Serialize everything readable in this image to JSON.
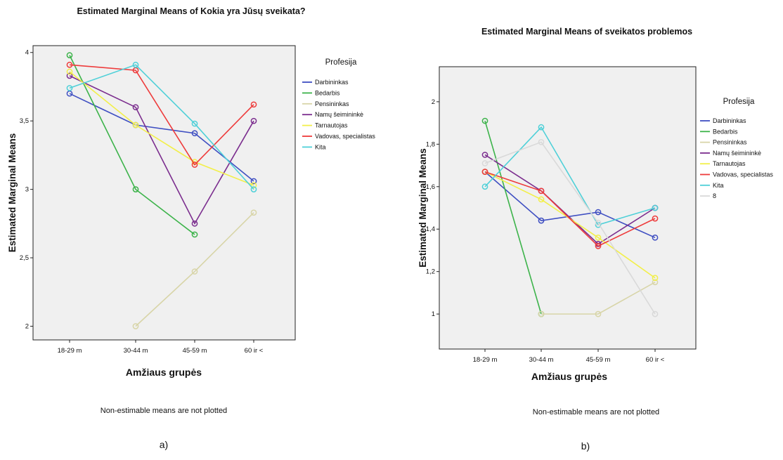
{
  "chart_data": [
    {
      "type": "line",
      "title": "Estimated Marginal Means of Kokia yra Jūsų sveikata?",
      "xlabel": "Amžiaus grupės",
      "ylabel": "Estimated Marginal Means",
      "categories": [
        "18-29 m",
        "30-44 m",
        "45-59 m",
        "60 ir <"
      ],
      "ylim": [
        1.9,
        4.05
      ],
      "yticks": [
        2,
        2.5,
        3,
        3.5,
        4
      ],
      "ytick_labels": [
        "2",
        "2,5",
        "3",
        "3,5",
        "4"
      ],
      "legend_title": "Profesija",
      "legend_position": "right",
      "note": "Non-estimable means are not plotted",
      "panel_label": "a)",
      "series": [
        {
          "name": "Darbininkas",
          "color": "#3f4fc2",
          "values": [
            3.7,
            3.47,
            3.41,
            3.06
          ]
        },
        {
          "name": "Bedarbis",
          "color": "#3cb34a",
          "values": [
            3.98,
            3.0,
            2.67,
            null
          ]
        },
        {
          "name": "Pensininkas",
          "color": "#d8d5a8",
          "values": [
            null,
            2.0,
            2.4,
            2.83
          ]
        },
        {
          "name": "Namų šeimininkė",
          "color": "#7b2d8e",
          "values": [
            3.83,
            3.6,
            2.75,
            3.5
          ]
        },
        {
          "name": "Tarnautojas",
          "color": "#f2ef4a",
          "values": [
            3.86,
            3.47,
            3.2,
            3.03
          ]
        },
        {
          "name": "Vadovas, specialistas",
          "color": "#ee3b3b",
          "values": [
            3.91,
            3.87,
            3.18,
            3.62
          ]
        },
        {
          "name": "Kita",
          "color": "#4fd0d8",
          "values": [
            3.74,
            3.91,
            3.48,
            3.0
          ]
        }
      ]
    },
    {
      "type": "line",
      "title": "Estimated Marginal Means of sveikatos problemos",
      "xlabel": "Amžiaus grupės",
      "ylabel": "Estimated Marginal Means",
      "categories": [
        "18-29 m",
        "30-44 m",
        "45-59 m",
        "60 ir <"
      ],
      "ylim": [
        0.835,
        2.165
      ],
      "yticks": [
        1,
        1.2,
        1.4,
        1.6,
        1.8,
        2
      ],
      "ytick_labels": [
        "1",
        "1,2",
        "1,4",
        "1,6",
        "1,8",
        "2"
      ],
      "legend_title": "Profesija",
      "legend_position": "right",
      "note": "Non-estimable means are not plotted",
      "panel_label": "b)",
      "series": [
        {
          "name": "Darbininkas",
          "color": "#3f4fc2",
          "values": [
            1.67,
            1.44,
            1.48,
            1.36
          ]
        },
        {
          "name": "Bedarbis",
          "color": "#3cb34a",
          "values": [
            1.91,
            1.0,
            null,
            null
          ]
        },
        {
          "name": "Pensininkas",
          "color": "#d8d5a8",
          "values": [
            null,
            1.0,
            1.0,
            1.15
          ]
        },
        {
          "name": "Namų šeimininkė",
          "color": "#7b2d8e",
          "values": [
            1.75,
            1.58,
            1.33,
            1.5
          ]
        },
        {
          "name": "Tarnautojas",
          "color": "#f2ef4a",
          "values": [
            1.67,
            1.54,
            1.36,
            1.17
          ]
        },
        {
          "name": "Vadovas, specialistas",
          "color": "#ee3b3b",
          "values": [
            1.67,
            1.58,
            1.32,
            1.45
          ]
        },
        {
          "name": "Kita",
          "color": "#4fd0d8",
          "values": [
            1.6,
            1.88,
            1.42,
            1.5
          ]
        },
        {
          "name": "8",
          "color": "#d9d9d9",
          "values": [
            1.71,
            1.81,
            1.43,
            1.0
          ]
        }
      ]
    }
  ]
}
